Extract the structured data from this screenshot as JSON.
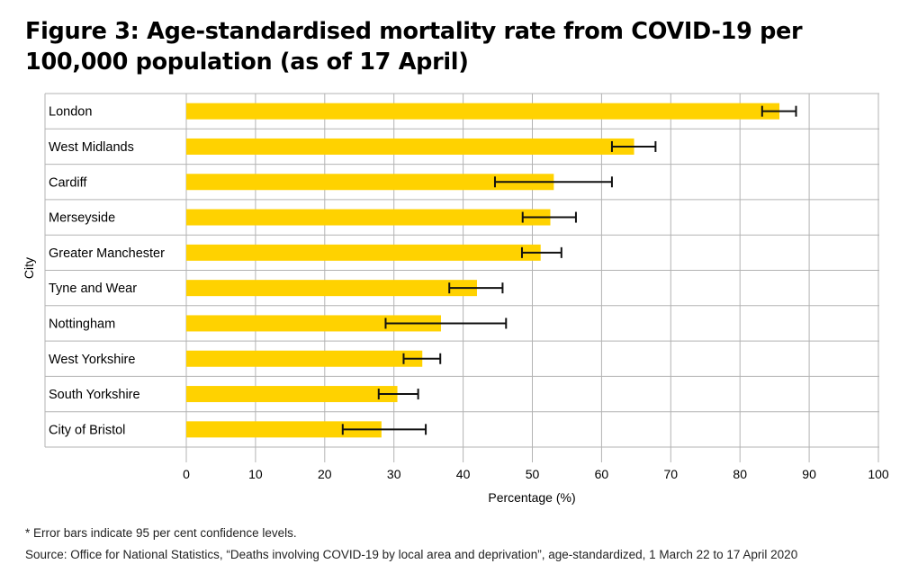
{
  "title": "Figure 3: Age-standardised mortality rate from COVID-19 per 100,000 population (as of 17 April)",
  "footnote": "* Error bars indicate 95 per cent confidence levels.",
  "source": "Source: Office for National Statistics, “Deaths involving COVID-19 by local area and deprivation”, age-standardized, 1 March 22 to 17 April 2020",
  "colors": {
    "bar": "#FFD200",
    "grid": "#b3b3b3",
    "error_bar": "#111111",
    "text": "#000000"
  },
  "chart_data": {
    "type": "bar",
    "orientation": "horizontal",
    "xlabel": "Percentage (%)",
    "ylabel": "City",
    "xlim": [
      0,
      100
    ],
    "xticks": [
      0,
      10,
      20,
      30,
      40,
      50,
      60,
      70,
      80,
      90,
      100
    ],
    "grid": true,
    "categories": [
      "London",
      "West Midlands",
      "Cardiff",
      "Merseyside",
      "Greater Manchester",
      "Tyne and Wear",
      "Nottingham",
      "West Yorkshire",
      "South Yorkshire",
      "City of Bristol"
    ],
    "values": [
      85.7,
      64.7,
      53.1,
      52.6,
      51.2,
      42.0,
      36.8,
      34.1,
      30.5,
      28.2
    ],
    "ci_low": [
      83.2,
      61.5,
      44.6,
      48.6,
      48.5,
      38.0,
      28.8,
      31.4,
      27.8,
      22.6
    ],
    "ci_high": [
      88.1,
      67.8,
      61.5,
      56.3,
      54.2,
      45.7,
      46.2,
      36.7,
      33.5,
      34.6
    ]
  }
}
